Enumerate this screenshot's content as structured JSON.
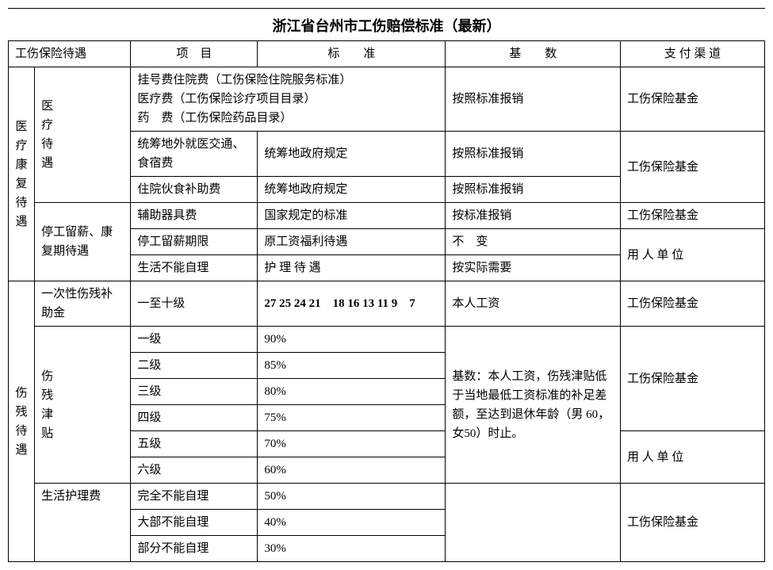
{
  "title": "浙江省台州市工伤赔偿标准（最新）",
  "headers": {
    "col1": "工伤保险待遇",
    "col2": "项　目",
    "col3": "标　　准",
    "col4": "基　　数",
    "col5": "支 付 渠 道"
  },
  "section1": {
    "groupA": "医疗康复待遇",
    "subA1": "医疗待遇",
    "subA2": "停工留薪、康复期待遇",
    "r1_project": "挂号费住院费（工伤保险住院服务标准）\n医疗费（工伤保险诊疗项目目录）\n药　费（工伤保险药品目录）",
    "r1_base": "按照标准报销",
    "r1_pay": "工伤保险基金",
    "r2_project": "统筹地外就医交通、食宿费",
    "r2_std": "统筹地政府规定",
    "r2_base": "按照标准报销",
    "r23_pay": "工伤保险基金",
    "r3_project": "住院伙食补助费",
    "r3_std": "统筹地政府规定",
    "r3_base": "按照标准报销",
    "r4_project": "辅助器具费",
    "r4_std": "国家规定的标准",
    "r4_base": "按标准报销",
    "r4_pay": "工伤保险基金",
    "r5_project": "停工留薪期限",
    "r5_std": "原工资福利待遇",
    "r5_base": "不　变",
    "r56_pay": "用 人 单 位",
    "r6_project": "生活不能自理",
    "r6_std": "护 理 待 遇",
    "r6_base": "按实际需要"
  },
  "section2": {
    "groupB": "伤　残　待　遇",
    "subB1": "一次性伤残补助金",
    "subB2": "伤残津贴",
    "subB3": "生活护理费",
    "r7_project": "一至十级",
    "r7_std": "27 25 24 21　18 16 13 11 9　7",
    "r7_base": "本人工资",
    "r7_pay": "工伤保险基金",
    "r8_project": "一级",
    "r8_std": "90%",
    "r8_base": "基数：本人工资，伤残津贴低于当地最低工资标准的补足差额，至达到退休年龄（男 60，女50）时止。",
    "r8_pay": "工伤保险基金",
    "r9_project": "二级",
    "r9_std": "85%",
    "r10_project": "三级",
    "r10_std": "80%",
    "r11_project": "四级",
    "r11_std": "75%",
    "r12_project": "五级",
    "r12_std": "70%",
    "r12_pay": "用 人 单 位",
    "r13_project": "六级",
    "r13_std": "60%",
    "r14_project": "完全不能自理",
    "r14_std": "50%",
    "r14_pay": "工伤保险基金",
    "r15_project": "大部不能自理",
    "r15_std": "40%",
    "r16_project": "部分不能自理",
    "r16_std": "30%"
  }
}
